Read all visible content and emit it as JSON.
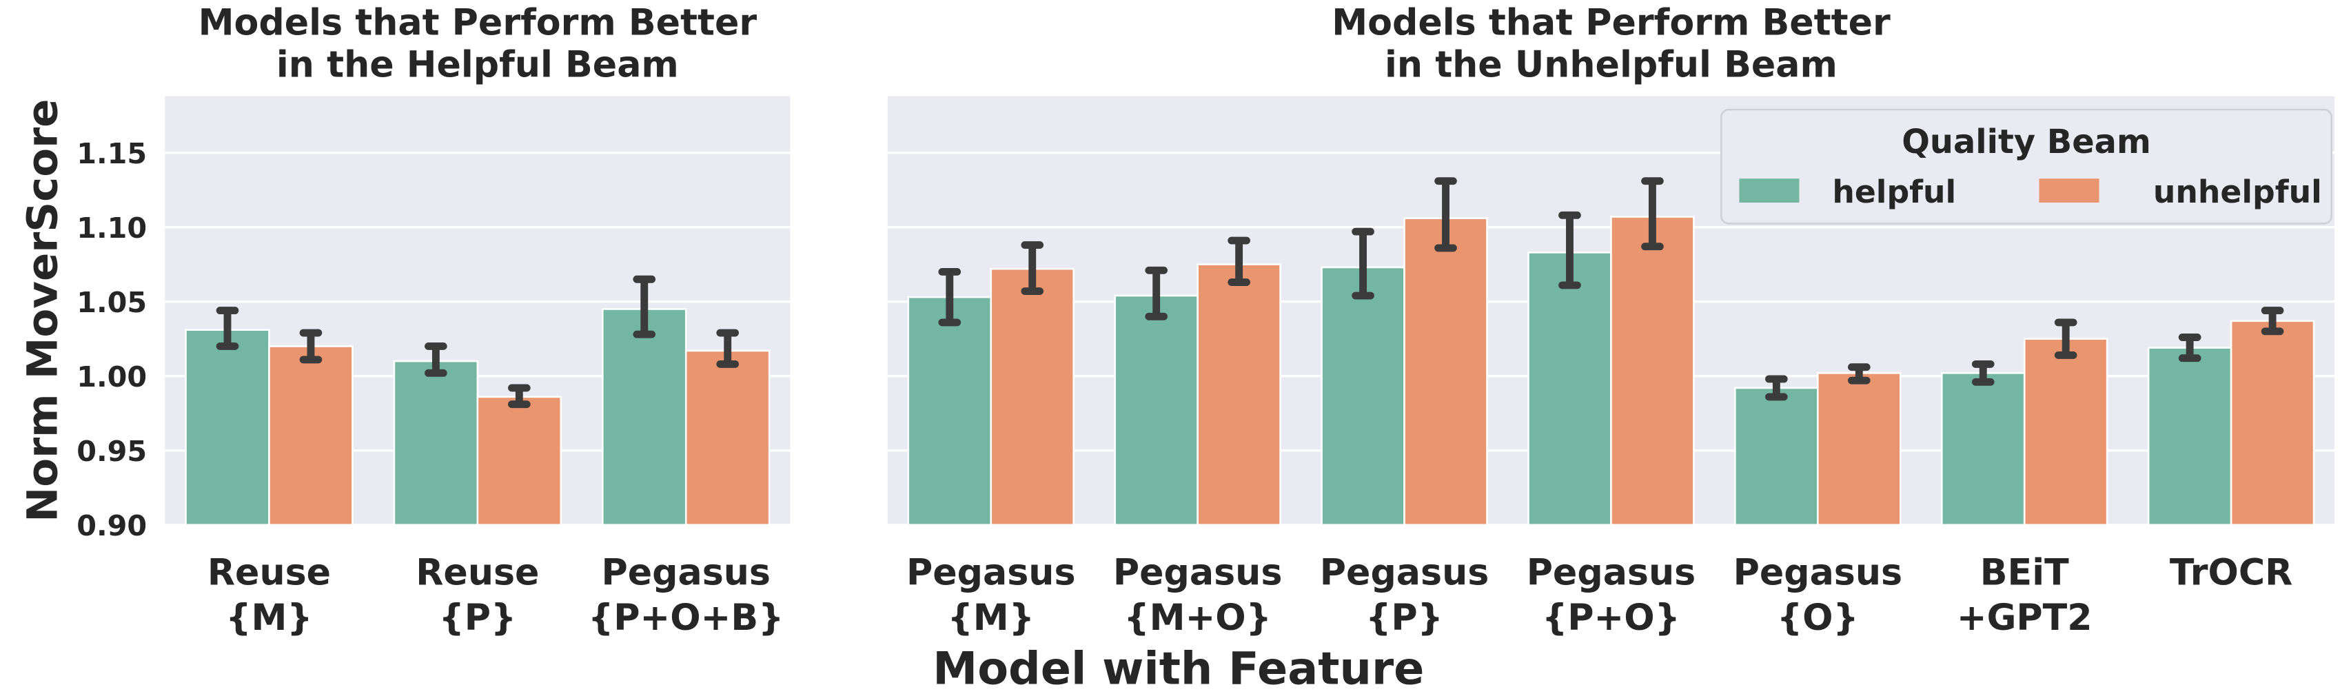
{
  "chart_data": [
    {
      "type": "bar",
      "title": [
        "Models that Perform Better",
        "in the Helpful Beam"
      ],
      "ylabel": "Norm MoverScore",
      "categories": [
        [
          "Reuse",
          "{M}"
        ],
        [
          "Reuse",
          "{P}"
        ],
        [
          "Pegasus",
          "{P+O+B}"
        ]
      ],
      "series": [
        {
          "name": "helpful",
          "color": "#73b6a1",
          "values": [
            1.031,
            1.01,
            1.045
          ],
          "lower": [
            1.02,
            1.002,
            1.028
          ],
          "upper": [
            1.044,
            1.02,
            1.065
          ]
        },
        {
          "name": "unhelpful",
          "color": "#e9956f",
          "values": [
            1.02,
            0.986,
            1.017
          ],
          "lower": [
            1.011,
            0.981,
            1.008
          ],
          "upper": [
            1.029,
            0.992,
            1.029
          ]
        }
      ],
      "ylim": [
        0.9,
        1.188
      ],
      "yticks": [
        {
          "value": 0.9,
          "label": "0.90"
        },
        {
          "value": 0.95,
          "label": "0.95"
        },
        {
          "value": 1.0,
          "label": "1.00"
        },
        {
          "value": 1.05,
          "label": "1.05"
        },
        {
          "value": 1.1,
          "label": "1.10"
        },
        {
          "value": 1.15,
          "label": "1.15"
        }
      ],
      "grid": true
    },
    {
      "type": "bar",
      "title": [
        "Models that Perform Better",
        "in the Unhelpful Beam"
      ],
      "xlabel": "Model with Feature",
      "legend_title": "Quality Beam",
      "legend": "upper right",
      "categories": [
        [
          "Pegasus",
          "{M}"
        ],
        [
          "Pegasus",
          "{M+O}"
        ],
        [
          "Pegasus",
          "{P}"
        ],
        [
          "Pegasus",
          "{P+O}"
        ],
        [
          "Pegasus",
          "{O}"
        ],
        [
          "BEiT",
          "+GPT2"
        ],
        [
          "TrOCR"
        ]
      ],
      "series": [
        {
          "name": "helpful",
          "color": "#73b6a1",
          "values": [
            1.053,
            1.054,
            1.073,
            1.083,
            0.992,
            1.002,
            1.019
          ],
          "lower": [
            1.036,
            1.04,
            1.054,
            1.061,
            0.986,
            0.996,
            1.012
          ],
          "upper": [
            1.07,
            1.071,
            1.097,
            1.108,
            0.998,
            1.008,
            1.026
          ]
        },
        {
          "name": "unhelpful",
          "color": "#e9956f",
          "values": [
            1.072,
            1.075,
            1.106,
            1.107,
            1.002,
            1.025,
            1.037
          ],
          "lower": [
            1.057,
            1.063,
            1.086,
            1.087,
            0.997,
            1.014,
            1.03
          ],
          "upper": [
            1.088,
            1.091,
            1.131,
            1.131,
            1.006,
            1.036,
            1.044
          ]
        }
      ],
      "ylim": [
        0.9,
        1.188
      ],
      "yticks": [
        0.9,
        0.95,
        1.0,
        1.05,
        1.1,
        1.15
      ],
      "grid": true
    }
  ]
}
